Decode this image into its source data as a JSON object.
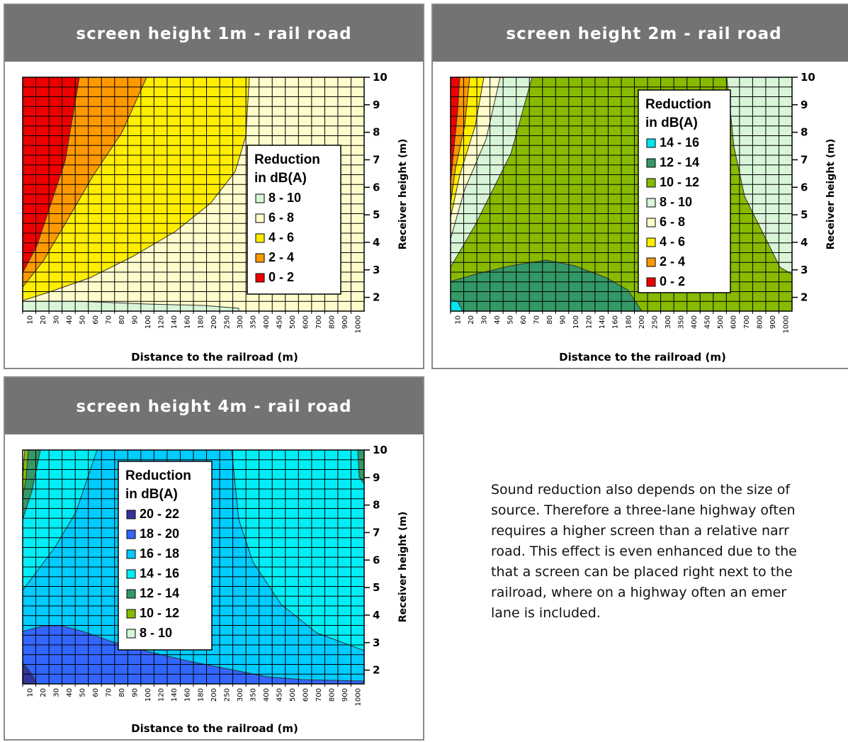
{
  "common": {
    "xlabel": "Distance to the railroad (m)",
    "ylabel": "Receiver height (m)",
    "x_ticks": [
      "10",
      "20",
      "30",
      "40",
      "50",
      "60",
      "70",
      "80",
      "90",
      "100",
      "120",
      "140",
      "160",
      "180",
      "200",
      "250",
      "300",
      "350",
      "400",
      "450",
      "500",
      "600",
      "700",
      "800",
      "900",
      "1000"
    ],
    "y_ticks": [
      "2",
      "3",
      "4",
      "5",
      "6",
      "7",
      "8",
      "9",
      "10"
    ],
    "legend_title": [
      "Reduction",
      "in dB(A)"
    ]
  },
  "charts": [
    {
      "id": "p1",
      "title": "screen height 1m - rail road",
      "legend": [
        {
          "label": "8 - 10",
          "color": "#d8f5d8"
        },
        {
          "label": "6 - 8",
          "color": "#fffccc"
        },
        {
          "label": "4 - 6",
          "color": "#ffee00"
        },
        {
          "label": "2 - 4",
          "color": "#ff9900"
        },
        {
          "label": "0 - 2",
          "color": "#ee0000"
        }
      ]
    },
    {
      "id": "p2",
      "title": "screen height 2m - rail road",
      "legend": [
        {
          "label": "14 - 16",
          "color": "#00e5f0"
        },
        {
          "label": "12 - 14",
          "color": "#339966"
        },
        {
          "label": "10 - 12",
          "color": "#88bb00"
        },
        {
          "label": "8 - 10",
          "color": "#d8f5d8"
        },
        {
          "label": "6 - 8",
          "color": "#fffccc"
        },
        {
          "label": "4 - 6",
          "color": "#ffee00"
        },
        {
          "label": "2 - 4",
          "color": "#ff9900"
        },
        {
          "label": "0 - 2",
          "color": "#ee0000"
        }
      ]
    },
    {
      "id": "p3",
      "title": "screen height 4m - rail road",
      "legend": [
        {
          "label": "20 - 22",
          "color": "#333399"
        },
        {
          "label": "18 - 20",
          "color": "#3366ff"
        },
        {
          "label": "16 - 18",
          "color": "#00ccff"
        },
        {
          "label": "14 - 16",
          "color": "#00eef5"
        },
        {
          "label": "12 - 14",
          "color": "#339966"
        },
        {
          "label": "10 - 12",
          "color": "#88bb00"
        },
        {
          "label": "8 - 10",
          "color": "#d8f5d8"
        }
      ]
    }
  ],
  "chart_data": [
    {
      "type": "heatmap",
      "title": "screen height 1m - rail road",
      "xlabel": "Distance to the railroad (m)",
      "ylabel": "Receiver height (m)",
      "x": [
        10,
        20,
        30,
        40,
        50,
        60,
        70,
        80,
        90,
        100,
        120,
        140,
        160,
        180,
        200,
        250,
        300,
        350,
        400,
        450,
        500,
        600,
        700,
        800,
        900,
        1000
      ],
      "y": [
        2,
        3,
        4,
        5,
        6,
        7,
        8,
        9,
        10
      ],
      "ylim": [
        1.5,
        10
      ],
      "legend": [
        "8 - 10",
        "6 - 8",
        "4 - 6",
        "2 - 4",
        "0 - 2"
      ],
      "legend_placement": "right"
    },
    {
      "type": "heatmap",
      "title": "screen height 2m - rail road",
      "xlabel": "Distance to the railroad (m)",
      "ylabel": "Receiver height (m)",
      "x": [
        10,
        20,
        30,
        40,
        50,
        60,
        70,
        80,
        90,
        100,
        120,
        140,
        160,
        180,
        200,
        250,
        300,
        350,
        400,
        450,
        500,
        600,
        700,
        800,
        900,
        1000
      ],
      "y": [
        2,
        3,
        4,
        5,
        6,
        7,
        8,
        9,
        10
      ],
      "ylim": [
        1.5,
        10
      ],
      "legend": [
        "14 - 16",
        "12 - 14",
        "10 - 12",
        "8 - 10",
        "6 - 8",
        "4 - 6",
        "2 - 4",
        "0 - 2"
      ],
      "legend_placement": "top-right"
    },
    {
      "type": "heatmap",
      "title": "screen height 4m - rail road",
      "xlabel": "Distance to the railroad (m)",
      "ylabel": "Receiver height (m)",
      "x": [
        10,
        20,
        30,
        40,
        50,
        60,
        70,
        80,
        90,
        100,
        120,
        140,
        160,
        180,
        200,
        250,
        300,
        350,
        400,
        450,
        500,
        600,
        700,
        800,
        900,
        1000
      ],
      "y": [
        2,
        3,
        4,
        5,
        6,
        7,
        8,
        9,
        10
      ],
      "ylim": [
        1.5,
        10
      ],
      "legend": [
        "20 - 22",
        "18 - 20",
        "16 - 18",
        "14 - 16",
        "12 - 14",
        "10 - 12",
        "8 - 10"
      ],
      "legend_placement": "top-left"
    }
  ],
  "body_text": [
    "Sound reduction also depends on the size of",
    "source. Therefore a three-lane highway often",
    "requires a higher screen than a relative narr",
    "road. This effect is even enhanced due to the",
    "that a screen can be placed right next to the",
    "railroad, where on a highway often an emer",
    "lane is included."
  ]
}
